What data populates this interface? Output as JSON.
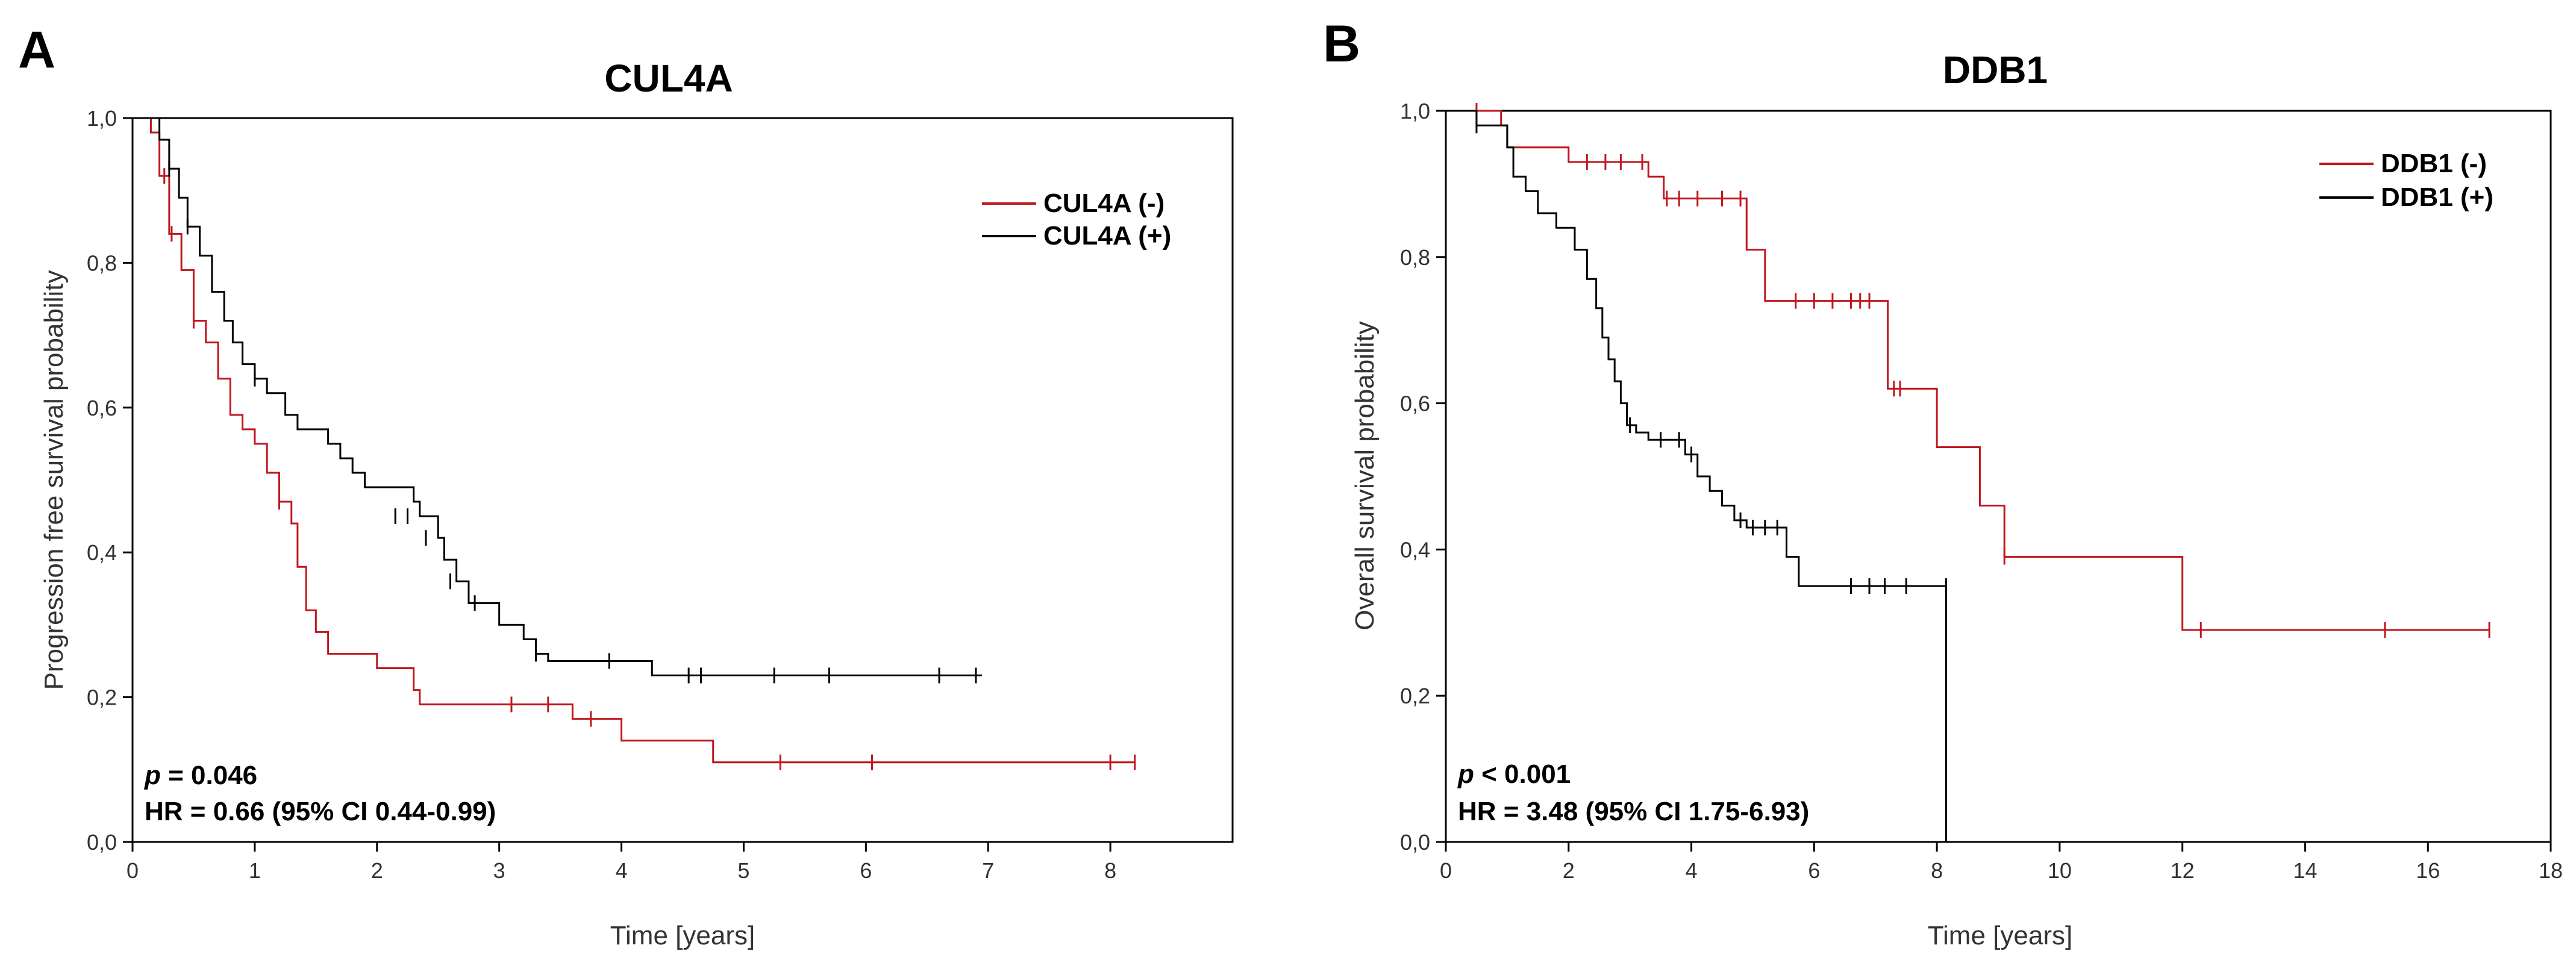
{
  "chart_data": [
    {
      "type": "line",
      "panel_label": "A",
      "title": "CUL4A",
      "xlabel": "Time [years]",
      "ylabel": "Progression free survival probability",
      "xlim": [
        0,
        9
      ],
      "ylim": [
        0,
        1
      ],
      "xticks": [
        0,
        1,
        2,
        3,
        4,
        5,
        6,
        7,
        8
      ],
      "yticks": [
        0,
        0.2,
        0.4,
        0.6,
        0.8,
        1.0
      ],
      "xtick_labels": [
        "0",
        "1",
        "2",
        "3",
        "4",
        "5",
        "6",
        "7",
        "8"
      ],
      "ytick_labels": [
        "0,0",
        "0,2",
        "0,4",
        "0,6",
        "0,8",
        "1,0"
      ],
      "legend_position": "top-right",
      "grid": false,
      "annotation": {
        "p_symbol": "p",
        "p_text": " = 0.046",
        "hr_text": "HR = 0.66 (95% CI 0.44-0.99)"
      },
      "series": [
        {
          "name": "CUL4A (-)",
          "color": "#c0161e",
          "steps": [
            [
              0,
              1.0
            ],
            [
              0.15,
              0.98
            ],
            [
              0.22,
              0.92
            ],
            [
              0.3,
              0.84
            ],
            [
              0.4,
              0.79
            ],
            [
              0.5,
              0.72
            ],
            [
              0.6,
              0.69
            ],
            [
              0.7,
              0.64
            ],
            [
              0.8,
              0.59
            ],
            [
              0.9,
              0.57
            ],
            [
              1.0,
              0.55
            ],
            [
              1.1,
              0.51
            ],
            [
              1.2,
              0.47
            ],
            [
              1.3,
              0.44
            ],
            [
              1.35,
              0.38
            ],
            [
              1.42,
              0.32
            ],
            [
              1.5,
              0.29
            ],
            [
              1.6,
              0.26
            ],
            [
              2.0,
              0.24
            ],
            [
              2.3,
              0.21
            ],
            [
              2.35,
              0.19
            ],
            [
              3.6,
              0.17
            ],
            [
              4.0,
              0.14
            ],
            [
              4.75,
              0.11
            ],
            [
              8.2,
              0.11
            ]
          ],
          "censors": [
            [
              0.26,
              0.92
            ],
            [
              0.32,
              0.84
            ],
            [
              0.5,
              0.72
            ],
            [
              1.2,
              0.47
            ],
            [
              3.1,
              0.19
            ],
            [
              3.4,
              0.19
            ],
            [
              3.75,
              0.17
            ],
            [
              5.3,
              0.11
            ],
            [
              6.05,
              0.11
            ],
            [
              8.0,
              0.11
            ],
            [
              8.2,
              0.11
            ]
          ]
        },
        {
          "name": "CUL4A (+)",
          "color": "#000000",
          "steps": [
            [
              0,
              1.0
            ],
            [
              0.22,
              0.97
            ],
            [
              0.3,
              0.93
            ],
            [
              0.38,
              0.89
            ],
            [
              0.45,
              0.85
            ],
            [
              0.55,
              0.81
            ],
            [
              0.65,
              0.76
            ],
            [
              0.75,
              0.72
            ],
            [
              0.82,
              0.69
            ],
            [
              0.9,
              0.66
            ],
            [
              1.0,
              0.64
            ],
            [
              1.1,
              0.62
            ],
            [
              1.25,
              0.59
            ],
            [
              1.35,
              0.57
            ],
            [
              1.6,
              0.55
            ],
            [
              1.7,
              0.53
            ],
            [
              1.8,
              0.51
            ],
            [
              1.9,
              0.49
            ],
            [
              2.3,
              0.47
            ],
            [
              2.35,
              0.45
            ],
            [
              2.5,
              0.42
            ],
            [
              2.55,
              0.39
            ],
            [
              2.65,
              0.36
            ],
            [
              2.75,
              0.33
            ],
            [
              3.0,
              0.3
            ],
            [
              3.2,
              0.28
            ],
            [
              3.3,
              0.26
            ],
            [
              3.4,
              0.25
            ],
            [
              4.25,
              0.23
            ],
            [
              6.95,
              0.23
            ]
          ],
          "censors": [
            [
              0.3,
              0.93
            ],
            [
              0.45,
              0.85
            ],
            [
              1.0,
              0.64
            ],
            [
              2.15,
              0.45
            ],
            [
              2.25,
              0.45
            ],
            [
              2.4,
              0.42
            ],
            [
              2.6,
              0.36
            ],
            [
              2.8,
              0.33
            ],
            [
              3.3,
              0.26
            ],
            [
              3.9,
              0.25
            ],
            [
              4.55,
              0.23
            ],
            [
              4.65,
              0.23
            ],
            [
              5.25,
              0.23
            ],
            [
              5.7,
              0.23
            ],
            [
              6.6,
              0.23
            ],
            [
              6.9,
              0.23
            ]
          ]
        }
      ]
    },
    {
      "type": "line",
      "panel_label": "B",
      "title": "DDB1",
      "xlabel": "Time [years]",
      "ylabel": "Overall survival probability",
      "xlim": [
        0,
        18
      ],
      "ylim": [
        0,
        1
      ],
      "xticks": [
        0,
        2,
        4,
        6,
        8,
        10,
        12,
        14,
        16,
        18
      ],
      "yticks": [
        0,
        0.2,
        0.4,
        0.6,
        0.8,
        1.0
      ],
      "xtick_labels": [
        "0",
        "2",
        "4",
        "6",
        "8",
        "10",
        "12",
        "14",
        "16",
        "18"
      ],
      "ytick_labels": [
        "0,0",
        "0,2",
        "0,4",
        "0,6",
        "0,8",
        "1,0"
      ],
      "legend_position": "top-right",
      "grid": false,
      "annotation": {
        "p_symbol": "p",
        "p_text": " < 0.001",
        "hr_text": "HR = 3.48 (95% CI 1.75-6.93)"
      },
      "series": [
        {
          "name": "DDB1 (-)",
          "color": "#c0161e",
          "steps": [
            [
              0,
              1.0
            ],
            [
              0.9,
              0.98
            ],
            [
              1.0,
              0.95
            ],
            [
              2.0,
              0.93
            ],
            [
              3.3,
              0.91
            ],
            [
              3.55,
              0.88
            ],
            [
              4.9,
              0.81
            ],
            [
              5.2,
              0.74
            ],
            [
              7.2,
              0.62
            ],
            [
              7.4,
              0.62
            ],
            [
              8.0,
              0.54
            ],
            [
              8.7,
              0.46
            ],
            [
              9.1,
              0.39
            ],
            [
              12.0,
              0.29
            ],
            [
              17.0,
              0.29
            ]
          ],
          "censors": [
            [
              0.5,
              1.0
            ],
            [
              2.3,
              0.93
            ],
            [
              2.6,
              0.93
            ],
            [
              2.85,
              0.93
            ],
            [
              3.2,
              0.93
            ],
            [
              3.6,
              0.88
            ],
            [
              3.8,
              0.88
            ],
            [
              4.1,
              0.88
            ],
            [
              4.5,
              0.88
            ],
            [
              4.8,
              0.88
            ],
            [
              5.7,
              0.74
            ],
            [
              6.0,
              0.74
            ],
            [
              6.3,
              0.74
            ],
            [
              6.6,
              0.74
            ],
            [
              6.75,
              0.74
            ],
            [
              6.9,
              0.74
            ],
            [
              7.3,
              0.62
            ],
            [
              7.4,
              0.62
            ],
            [
              9.1,
              0.39
            ],
            [
              12.3,
              0.29
            ],
            [
              15.3,
              0.29
            ],
            [
              17.0,
              0.29
            ]
          ]
        },
        {
          "name": "DDB1 (+)",
          "color": "#000000",
          "steps": [
            [
              0,
              1.0
            ],
            [
              0.5,
              0.98
            ],
            [
              1.0,
              0.95
            ],
            [
              1.1,
              0.91
            ],
            [
              1.3,
              0.89
            ],
            [
              1.5,
              0.86
            ],
            [
              1.8,
              0.84
            ],
            [
              2.1,
              0.81
            ],
            [
              2.3,
              0.77
            ],
            [
              2.45,
              0.73
            ],
            [
              2.55,
              0.69
            ],
            [
              2.65,
              0.66
            ],
            [
              2.75,
              0.63
            ],
            [
              2.85,
              0.6
            ],
            [
              2.95,
              0.57
            ],
            [
              3.1,
              0.56
            ],
            [
              3.3,
              0.55
            ],
            [
              3.9,
              0.53
            ],
            [
              4.1,
              0.5
            ],
            [
              4.3,
              0.48
            ],
            [
              4.5,
              0.46
            ],
            [
              4.7,
              0.44
            ],
            [
              4.9,
              0.43
            ],
            [
              5.55,
              0.39
            ],
            [
              5.75,
              0.35
            ],
            [
              8.15,
              0.0
            ]
          ],
          "censors": [
            [
              0.5,
              0.98
            ],
            [
              3.0,
              0.57
            ],
            [
              3.5,
              0.55
            ],
            [
              3.8,
              0.55
            ],
            [
              4.0,
              0.53
            ],
            [
              4.8,
              0.44
            ],
            [
              5.0,
              0.43
            ],
            [
              5.2,
              0.43
            ],
            [
              5.4,
              0.43
            ],
            [
              6.6,
              0.35
            ],
            [
              6.9,
              0.35
            ],
            [
              7.15,
              0.35
            ],
            [
              7.5,
              0.35
            ],
            [
              8.15,
              0.35
            ]
          ]
        }
      ]
    }
  ]
}
